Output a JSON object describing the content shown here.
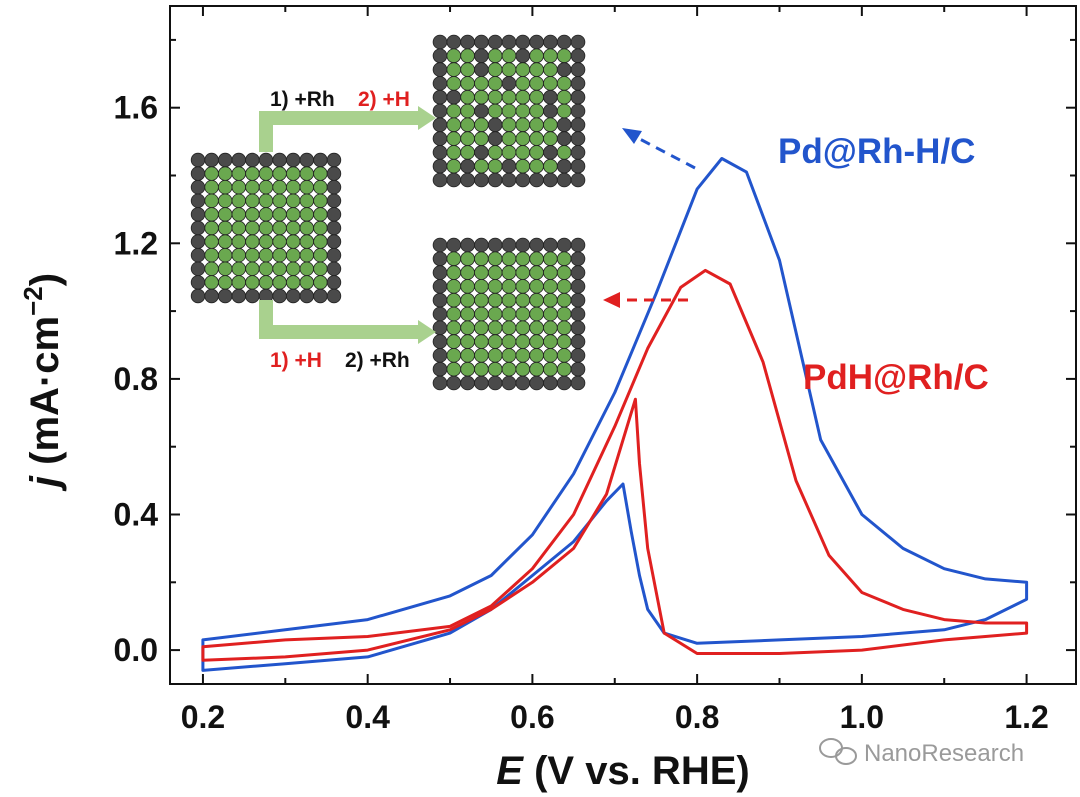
{
  "chart_data": {
    "type": "line",
    "title": "",
    "xlabel": {
      "italic": "E",
      "rest": " (V vs. RHE)"
    },
    "ylabel": {
      "italic": "j",
      "rest": " (mA·cm",
      "sup": "−2",
      "close": ")"
    },
    "xlim": [
      0.16,
      1.26
    ],
    "ylim": [
      -0.1,
      1.9
    ],
    "xticks": [
      0.2,
      0.4,
      0.6,
      0.8,
      1.0,
      1.2
    ],
    "xtick_labels": [
      "0.2",
      "0.4",
      "0.6",
      "0.8",
      "1.0",
      "1.2"
    ],
    "yticks": [
      0.0,
      0.4,
      0.8,
      1.2,
      1.6
    ],
    "ytick_labels": [
      "0.0",
      "0.4",
      "0.8",
      "1.2",
      "1.6"
    ],
    "grid": false,
    "series": [
      {
        "name": "Pd@Rh-H/C",
        "color": "#2255cc",
        "points": [
          [
            0.2,
            0.03
          ],
          [
            0.3,
            0.06
          ],
          [
            0.4,
            0.09
          ],
          [
            0.5,
            0.16
          ],
          [
            0.55,
            0.22
          ],
          [
            0.6,
            0.34
          ],
          [
            0.65,
            0.52
          ],
          [
            0.7,
            0.76
          ],
          [
            0.75,
            1.05
          ],
          [
            0.8,
            1.36
          ],
          [
            0.83,
            1.45
          ],
          [
            0.86,
            1.41
          ],
          [
            0.9,
            1.15
          ],
          [
            0.95,
            0.62
          ],
          [
            1.0,
            0.4
          ],
          [
            1.05,
            0.3
          ],
          [
            1.1,
            0.24
          ],
          [
            1.15,
            0.21
          ],
          [
            1.2,
            0.2
          ],
          [
            1.2,
            0.15
          ],
          [
            1.15,
            0.09
          ],
          [
            1.1,
            0.06
          ],
          [
            1.0,
            0.04
          ],
          [
            0.9,
            0.03
          ],
          [
            0.8,
            0.02
          ],
          [
            0.76,
            0.05
          ],
          [
            0.74,
            0.12
          ],
          [
            0.73,
            0.22
          ],
          [
            0.72,
            0.35
          ],
          [
            0.71,
            0.49
          ],
          [
            0.69,
            0.44
          ],
          [
            0.65,
            0.32
          ],
          [
            0.6,
            0.22
          ],
          [
            0.55,
            0.12
          ],
          [
            0.5,
            0.05
          ],
          [
            0.4,
            -0.02
          ],
          [
            0.3,
            -0.04
          ],
          [
            0.2,
            -0.06
          ]
        ]
      },
      {
        "name": "PdH@Rh/C",
        "color": "#e02020",
        "points": [
          [
            0.2,
            0.01
          ],
          [
            0.3,
            0.03
          ],
          [
            0.4,
            0.04
          ],
          [
            0.5,
            0.07
          ],
          [
            0.55,
            0.13
          ],
          [
            0.6,
            0.24
          ],
          [
            0.65,
            0.4
          ],
          [
            0.7,
            0.66
          ],
          [
            0.74,
            0.89
          ],
          [
            0.78,
            1.07
          ],
          [
            0.81,
            1.12
          ],
          [
            0.84,
            1.08
          ],
          [
            0.88,
            0.85
          ],
          [
            0.92,
            0.5
          ],
          [
            0.96,
            0.28
          ],
          [
            1.0,
            0.17
          ],
          [
            1.05,
            0.12
          ],
          [
            1.1,
            0.09
          ],
          [
            1.15,
            0.08
          ],
          [
            1.2,
            0.08
          ],
          [
            1.2,
            0.05
          ],
          [
            1.15,
            0.04
          ],
          [
            1.1,
            0.03
          ],
          [
            1.0,
            0.0
          ],
          [
            0.9,
            -0.01
          ],
          [
            0.8,
            -0.01
          ],
          [
            0.76,
            0.05
          ],
          [
            0.74,
            0.3
          ],
          [
            0.73,
            0.55
          ],
          [
            0.725,
            0.74
          ],
          [
            0.715,
            0.66
          ],
          [
            0.69,
            0.46
          ],
          [
            0.65,
            0.3
          ],
          [
            0.6,
            0.2
          ],
          [
            0.55,
            0.12
          ],
          [
            0.5,
            0.06
          ],
          [
            0.4,
            0.0
          ],
          [
            0.3,
            -0.02
          ],
          [
            0.2,
            -0.03
          ]
        ]
      }
    ],
    "legend": [
      {
        "label": "Pd@Rh-H/C",
        "color": "#2255cc"
      },
      {
        "label": "PdH@Rh/C",
        "color": "#e02020"
      }
    ]
  },
  "inset": {
    "top_route": {
      "step1": "1) +Rh",
      "step2": "2) +H"
    },
    "bottom_route": {
      "step1": "1) +H",
      "step2": "2) +Rh"
    },
    "colors": {
      "pd": "#6aa84f",
      "rh": "#4a4a4a",
      "arrow": "#a9d18e",
      "step_red": "#e02020",
      "step_black": "#111111"
    }
  },
  "watermark": "NanoResearch"
}
